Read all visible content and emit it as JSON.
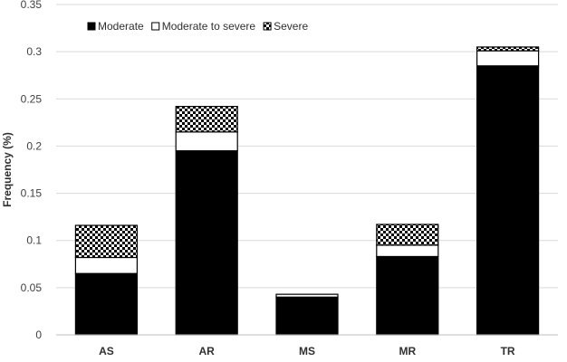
{
  "chart_data": {
    "type": "bar",
    "stacked": true,
    "title": "",
    "xlabel": "",
    "ylabel": "Frequency (%)",
    "ylim": [
      0,
      0.35
    ],
    "yticks": [
      "0",
      "0.05",
      "0.1",
      "0.15",
      "0.2",
      "0.25",
      "0.3",
      "0.35"
    ],
    "grid": true,
    "legend_position": "top-left",
    "categories": [
      "AS",
      "AR",
      "MS",
      "MR",
      "TR"
    ],
    "series": [
      {
        "name": "Moderate",
        "values": [
          0.065,
          0.195,
          0.04,
          0.083,
          0.285
        ],
        "pattern": "solid",
        "color": "#000000"
      },
      {
        "name": "Moderate to severe",
        "values": [
          0.017,
          0.02,
          0.003,
          0.012,
          0.016
        ],
        "pattern": "solid",
        "color": "#ffffff"
      },
      {
        "name": "Severe",
        "values": [
          0.034,
          0.027,
          0.0,
          0.022,
          0.004
        ],
        "pattern": "checker",
        "color": "#000000"
      }
    ]
  }
}
